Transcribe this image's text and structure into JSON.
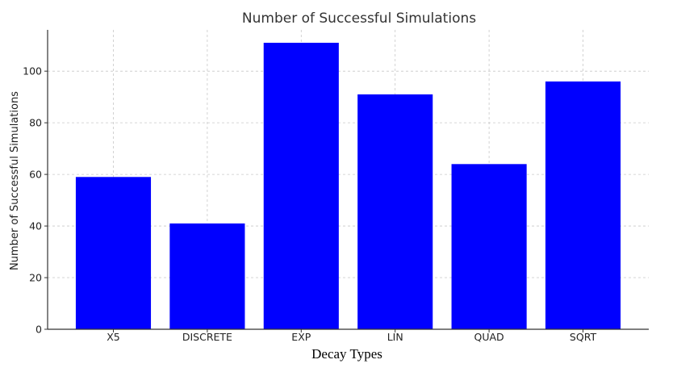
{
  "chart_data": {
    "type": "bar",
    "title": "Number of Successful Simulations",
    "xlabel": "Decay Types",
    "ylabel": "Number of Successful Simulations",
    "categories": [
      "X5",
      "DISCRETE",
      "EXP",
      "LIN",
      "QUAD",
      "SQRT"
    ],
    "values": [
      59,
      41,
      111,
      91,
      64,
      96
    ],
    "ylim": [
      0,
      116
    ],
    "yticks": [
      0,
      20,
      40,
      60,
      80,
      100
    ],
    "grid": true,
    "bar_color": "#0000ff",
    "legend": null
  }
}
